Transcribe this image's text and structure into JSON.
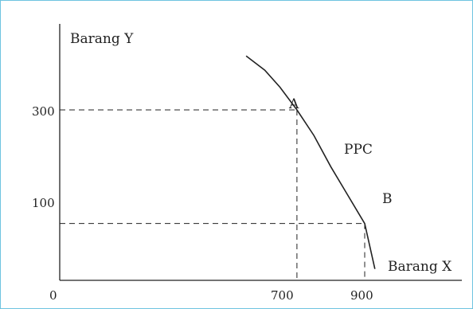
{
  "chart_data": {
    "type": "line",
    "xlabel": "Barang X",
    "ylabel": "Barang Y",
    "x_ticks": [
      "0",
      "700",
      "900"
    ],
    "y_ticks": [
      "300",
      "100"
    ],
    "curve_label": "PPC",
    "points": [
      {
        "label": "A",
        "x": 700,
        "y": 300
      },
      {
        "label": "B",
        "x": 900,
        "y": 100
      }
    ],
    "series": [
      {
        "name": "PPC",
        "values": [
          {
            "x": 550,
            "y": 395
          },
          {
            "x": 605,
            "y": 370
          },
          {
            "x": 650,
            "y": 340
          },
          {
            "x": 700,
            "y": 300
          },
          {
            "x": 750,
            "y": 255
          },
          {
            "x": 800,
            "y": 200
          },
          {
            "x": 850,
            "y": 150
          },
          {
            "x": 900,
            "y": 100
          },
          {
            "x": 930,
            "y": 20
          }
        ]
      }
    ],
    "grid": false,
    "legend": "none"
  }
}
